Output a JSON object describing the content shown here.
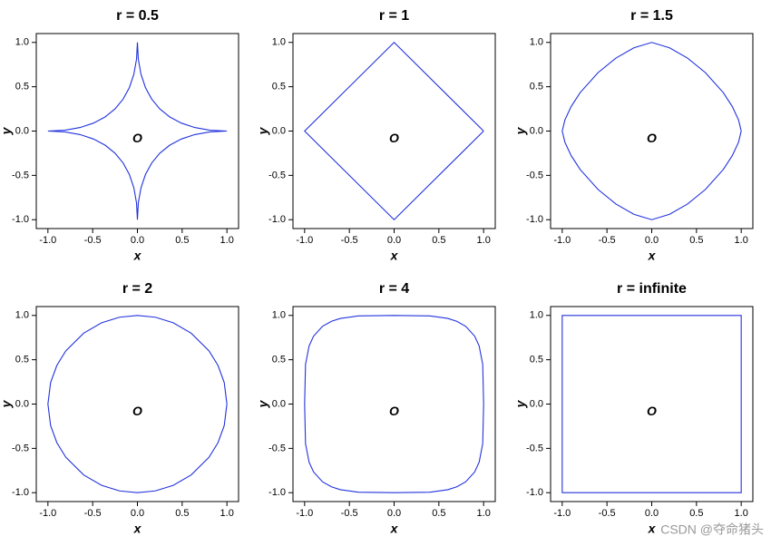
{
  "chart_data": [
    {
      "type": "line",
      "title": "r = 0.5",
      "xlabel": "x",
      "ylabel": "y",
      "annotation": "O",
      "color": "#2233dd",
      "xlim": [
        -1.13,
        1.13
      ],
      "ylim": [
        -1.1,
        1.1
      ],
      "xticks": [
        {
          "value": -1,
          "label": "-1.0"
        },
        -0.5,
        {
          "value": 0,
          "label": "0.0"
        },
        0.5,
        {
          "value": 1,
          "label": "1.0"
        }
      ],
      "yticks": [
        {
          "value": -1,
          "label": "-1.0"
        },
        -0.5,
        {
          "value": 0,
          "label": "0.0"
        },
        0.5,
        {
          "value": 1,
          "label": "1.0"
        }
      ],
      "x": [
        1,
        0.81,
        0.64,
        0.49,
        0.36,
        0.25,
        0.16,
        0.09,
        0.04,
        0.01,
        0,
        -0.01,
        -0.04,
        -0.09,
        -0.16,
        -0.25,
        -0.36,
        -0.49,
        -0.64,
        -0.81,
        -1,
        -0.81,
        -0.64,
        -0.49,
        -0.36,
        -0.25,
        -0.16,
        -0.09,
        -0.04,
        -0.01,
        0,
        0.01,
        0.04,
        0.09,
        0.16,
        0.25,
        0.36,
        0.49,
        0.64,
        0.81,
        1
      ],
      "y": [
        0,
        0.01,
        0.04,
        0.09,
        0.16,
        0.25,
        0.36,
        0.49,
        0.64,
        0.81,
        1,
        0.81,
        0.64,
        0.49,
        0.36,
        0.25,
        0.16,
        0.09,
        0.04,
        0.01,
        0,
        -0.01,
        -0.04,
        -0.09,
        -0.16,
        -0.25,
        -0.36,
        -0.49,
        -0.64,
        -0.81,
        -1,
        -0.81,
        -0.64,
        -0.49,
        -0.36,
        -0.25,
        -0.16,
        -0.09,
        -0.04,
        -0.01,
        0
      ]
    },
    {
      "type": "line",
      "title": "r = 1",
      "xlabel": "x",
      "ylabel": "y",
      "annotation": "O",
      "color": "#2233dd",
      "xlim": [
        -1.13,
        1.13
      ],
      "ylim": [
        -1.1,
        1.1
      ],
      "xticks": [
        {
          "value": -1,
          "label": "-1.0"
        },
        -0.5,
        {
          "value": 0,
          "label": "0.0"
        },
        0.5,
        {
          "value": 1,
          "label": "1.0"
        }
      ],
      "yticks": [
        {
          "value": -1,
          "label": "-1.0"
        },
        -0.5,
        {
          "value": 0,
          "label": "0.0"
        },
        0.5,
        {
          "value": 1,
          "label": "1.0"
        }
      ],
      "x": [
        1,
        0,
        -1,
        0,
        1
      ],
      "y": [
        0,
        1,
        0,
        -1,
        0
      ]
    },
    {
      "type": "line",
      "title": "r = 1.5",
      "xlabel": "x",
      "ylabel": "y",
      "annotation": "O",
      "color": "#2233dd",
      "xlim": [
        -1.13,
        1.13
      ],
      "ylim": [
        -1.1,
        1.1
      ],
      "xticks": [
        {
          "value": -1,
          "label": "-1.0"
        },
        -0.5,
        {
          "value": 0,
          "label": "0.0"
        },
        0.5,
        {
          "value": 1,
          "label": "1.0"
        }
      ],
      "yticks": [
        {
          "value": -1,
          "label": "-1.0"
        },
        -0.5,
        {
          "value": 0,
          "label": "0.0"
        },
        0.5,
        {
          "value": 1,
          "label": "1.0"
        }
      ],
      "x": [
        1,
        0.97,
        0.9,
        0.8,
        0.6,
        0.4,
        0.2,
        0,
        -0.2,
        -0.4,
        -0.6,
        -0.8,
        -0.9,
        -0.97,
        -1,
        -0.97,
        -0.9,
        -0.8,
        -0.6,
        -0.4,
        -0.2,
        0,
        0.2,
        0.4,
        0.6,
        0.8,
        0.9,
        0.97,
        1
      ],
      "y": [
        0,
        0.126,
        0.277,
        0.433,
        0.659,
        0.823,
        0.939,
        1,
        0.939,
        0.823,
        0.659,
        0.433,
        0.277,
        0.126,
        0,
        -0.126,
        -0.277,
        -0.433,
        -0.659,
        -0.823,
        -0.939,
        -1,
        -0.939,
        -0.823,
        -0.659,
        -0.433,
        -0.277,
        -0.126,
        0
      ]
    },
    {
      "type": "line",
      "title": "r = 2",
      "xlabel": "x",
      "ylabel": "y",
      "annotation": "O",
      "color": "#2233dd",
      "xlim": [
        -1.13,
        1.13
      ],
      "ylim": [
        -1.1,
        1.1
      ],
      "xticks": [
        {
          "value": -1,
          "label": "-1.0"
        },
        -0.5,
        {
          "value": 0,
          "label": "0.0"
        },
        0.5,
        {
          "value": 1,
          "label": "1.0"
        }
      ],
      "yticks": [
        {
          "value": -1,
          "label": "-1.0"
        },
        -0.5,
        {
          "value": 0,
          "label": "0.0"
        },
        0.5,
        {
          "value": 1,
          "label": "1.0"
        }
      ],
      "x": [
        1,
        0.97,
        0.9,
        0.8,
        0.6,
        0.4,
        0.2,
        0,
        -0.2,
        -0.4,
        -0.6,
        -0.8,
        -0.9,
        -0.97,
        -1,
        -0.97,
        -0.9,
        -0.8,
        -0.6,
        -0.4,
        -0.2,
        0,
        0.2,
        0.4,
        0.6,
        0.8,
        0.9,
        0.97,
        1
      ],
      "y": [
        0,
        0.243,
        0.436,
        0.6,
        0.8,
        0.917,
        0.98,
        1,
        0.98,
        0.917,
        0.8,
        0.6,
        0.436,
        0.243,
        0,
        -0.243,
        -0.436,
        -0.6,
        -0.8,
        -0.917,
        -0.98,
        -1,
        -0.98,
        -0.917,
        -0.8,
        -0.6,
        -0.436,
        -0.243,
        0
      ]
    },
    {
      "type": "line",
      "title": "r = 4",
      "xlabel": "x",
      "ylabel": "y",
      "annotation": "O",
      "color": "#2233dd",
      "xlim": [
        -1.13,
        1.13
      ],
      "ylim": [
        -1.1,
        1.1
      ],
      "xticks": [
        {
          "value": -1,
          "label": "-1.0"
        },
        -0.5,
        {
          "value": 0,
          "label": "0.0"
        },
        0.5,
        {
          "value": 1,
          "label": "1.0"
        }
      ],
      "yticks": [
        {
          "value": -1,
          "label": "-1.0"
        },
        -0.5,
        {
          "value": 0,
          "label": "0.0"
        },
        0.5,
        {
          "value": 1,
          "label": "1.0"
        }
      ],
      "x": [
        1,
        0.99,
        0.95,
        0.9,
        0.8,
        0.7,
        0.6,
        0.4,
        0,
        -0.4,
        -0.6,
        -0.7,
        -0.8,
        -0.9,
        -0.95,
        -0.99,
        -1,
        -0.99,
        -0.95,
        -0.9,
        -0.8,
        -0.7,
        -0.6,
        -0.4,
        0,
        0.4,
        0.6,
        0.7,
        0.8,
        0.9,
        0.95,
        0.99,
        1
      ],
      "y": [
        0,
        0.446,
        0.656,
        0.766,
        0.877,
        0.934,
        0.966,
        0.994,
        1,
        0.994,
        0.966,
        0.934,
        0.877,
        0.766,
        0.656,
        0.446,
        0,
        -0.446,
        -0.656,
        -0.766,
        -0.877,
        -0.934,
        -0.966,
        -0.994,
        -1,
        -0.994,
        -0.966,
        -0.934,
        -0.877,
        -0.766,
        -0.656,
        -0.446,
        0
      ]
    },
    {
      "type": "line",
      "title": "r = infinite",
      "xlabel": "x",
      "ylabel": "y",
      "annotation": "O",
      "color": "#2233dd",
      "xlim": [
        -1.13,
        1.13
      ],
      "ylim": [
        -1.1,
        1.1
      ],
      "xticks": [
        {
          "value": -1,
          "label": "-1.0"
        },
        -0.5,
        {
          "value": 0,
          "label": "0.0"
        },
        0.5,
        {
          "value": 1,
          "label": "1.0"
        }
      ],
      "yticks": [
        {
          "value": -1,
          "label": "-1.0"
        },
        -0.5,
        {
          "value": 0,
          "label": "0.0"
        },
        0.5,
        {
          "value": 1,
          "label": "1.0"
        }
      ],
      "x": [
        1,
        1,
        -1,
        -1,
        1,
        1
      ],
      "y": [
        0,
        1,
        1,
        -1,
        -1,
        0
      ]
    }
  ],
  "watermark": "CSDN @夺命猪头"
}
